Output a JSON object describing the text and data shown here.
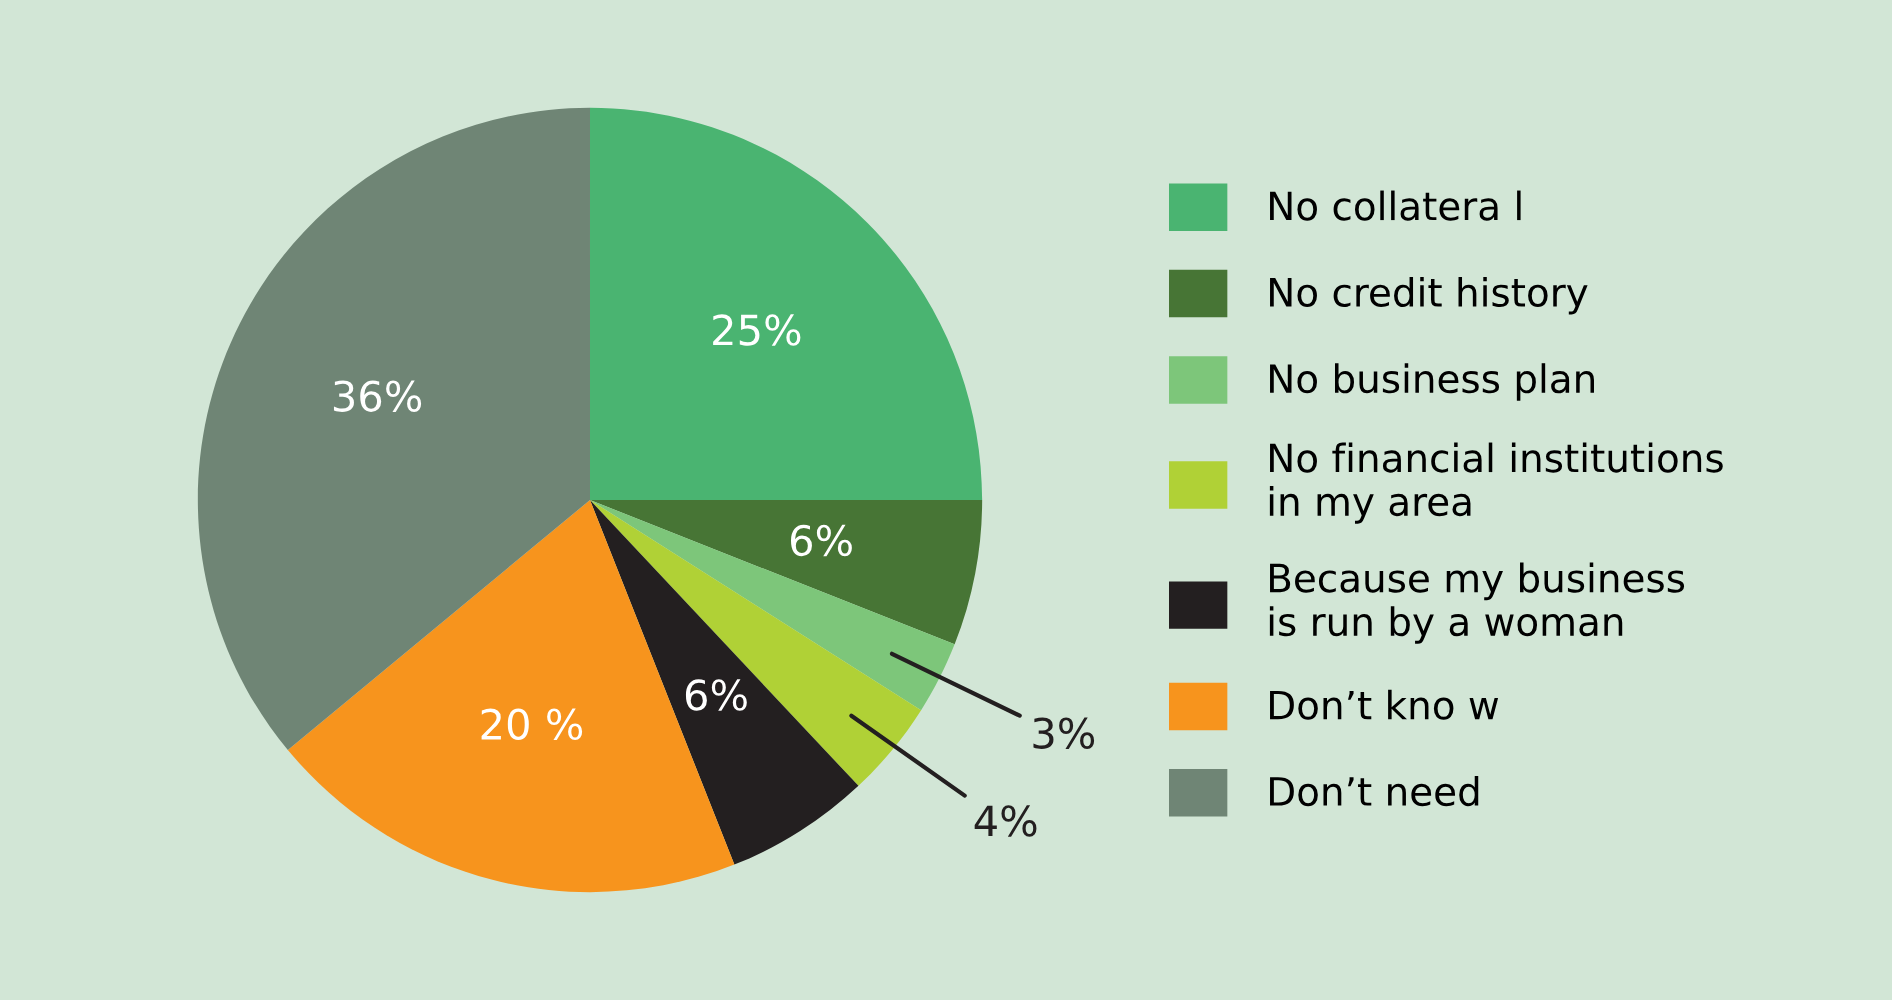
{
  "chart_data": {
    "type": "pie",
    "categories": [
      "No collatera l",
      "No credit history",
      "No business plan",
      "No financial institutions\nin my area",
      "Because my business\nis run by a woman",
      "Don’t kno w",
      "Don’t need"
    ],
    "values": [
      25,
      6,
      3,
      4,
      6,
      20,
      36
    ],
    "value_labels": [
      "25%",
      "6%",
      "3%",
      "4%",
      "6%",
      "20 %",
      "36%"
    ],
    "colors": [
      "#4ab471",
      "#477535",
      "#7dc67a",
      "#b0d136",
      "#231f20",
      "#f7941d",
      "#6f8575"
    ],
    "legend": "right"
  }
}
